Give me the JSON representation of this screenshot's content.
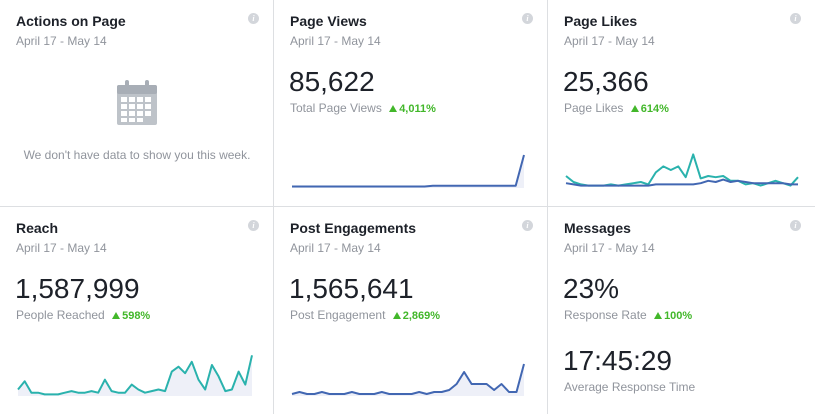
{
  "cards": [
    {
      "title": "Actions on Page",
      "date": "April 17 - May 14",
      "empty_message": "We don't have data to show you this week.",
      "icons": {
        "info": "info-icon",
        "calendar": "calendar-icon"
      }
    },
    {
      "title": "Page Views",
      "date": "April 17 - May 14",
      "value": "85,622",
      "label": "Total Page Views",
      "change": "4,011%"
    },
    {
      "title": "Page Likes",
      "date": "April 17 - May 14",
      "value": "25,366",
      "label": "Page Likes",
      "change": "614%"
    },
    {
      "title": "Reach",
      "date": "April 17 - May 14",
      "value": "1,587,999",
      "label": "People Reached",
      "change": "598%"
    },
    {
      "title": "Post Engagements",
      "date": "April 17 - May 14",
      "value": "1,565,641",
      "label": "Post Engagement",
      "change": "2,869%"
    },
    {
      "title": "Messages",
      "date": "April 17 - May 14",
      "value": "23%",
      "label": "Response Rate",
      "change": "100%",
      "value2": "17:45:29",
      "label2": "Average Response Time"
    }
  ],
  "colors": {
    "blue_line": "#4267b2",
    "teal_line": "#2ab2ad",
    "area_fill": "#eef0f8",
    "up_green": "#42b72a"
  },
  "sparklines": {
    "page_views": [
      1,
      1,
      1,
      1,
      1,
      1,
      1,
      1,
      1,
      1,
      1,
      1,
      1,
      1,
      1,
      1,
      1,
      1.5,
      1.5,
      1.5,
      1.5,
      1.5,
      1.5,
      1.5,
      1.5,
      1.5,
      1.5,
      1.5,
      22
    ],
    "page_likes_teal": [
      10,
      5,
      3,
      2,
      2,
      2,
      3,
      2,
      3,
      4,
      5,
      3,
      13,
      18,
      15,
      18,
      9,
      28,
      8,
      10,
      9,
      10,
      6,
      6,
      3,
      4,
      2,
      4,
      6,
      4,
      2,
      9
    ],
    "page_likes_blue": [
      4,
      3,
      2,
      2,
      2,
      2,
      2,
      2,
      2,
      2,
      2,
      2,
      3,
      3,
      3,
      3,
      3,
      3,
      4,
      6,
      5,
      7,
      5,
      6,
      5,
      4,
      4,
      4,
      4,
      4,
      3,
      3
    ],
    "reach": [
      4,
      9,
      2,
      2,
      1,
      1,
      1,
      2,
      3,
      2,
      2,
      3,
      2,
      10,
      3,
      2,
      2,
      7,
      4,
      2,
      3,
      4,
      3,
      15,
      18,
      14,
      21,
      10,
      4,
      19,
      12,
      3,
      4,
      15,
      7,
      25
    ],
    "post_engagement": [
      1,
      2,
      1,
      1,
      2,
      1,
      1,
      1,
      2,
      1,
      1,
      1,
      2,
      1,
      1,
      1,
      1,
      2,
      1,
      2,
      2,
      3,
      6,
      12,
      6,
      6,
      6,
      3,
      6,
      2,
      2,
      16
    ]
  }
}
